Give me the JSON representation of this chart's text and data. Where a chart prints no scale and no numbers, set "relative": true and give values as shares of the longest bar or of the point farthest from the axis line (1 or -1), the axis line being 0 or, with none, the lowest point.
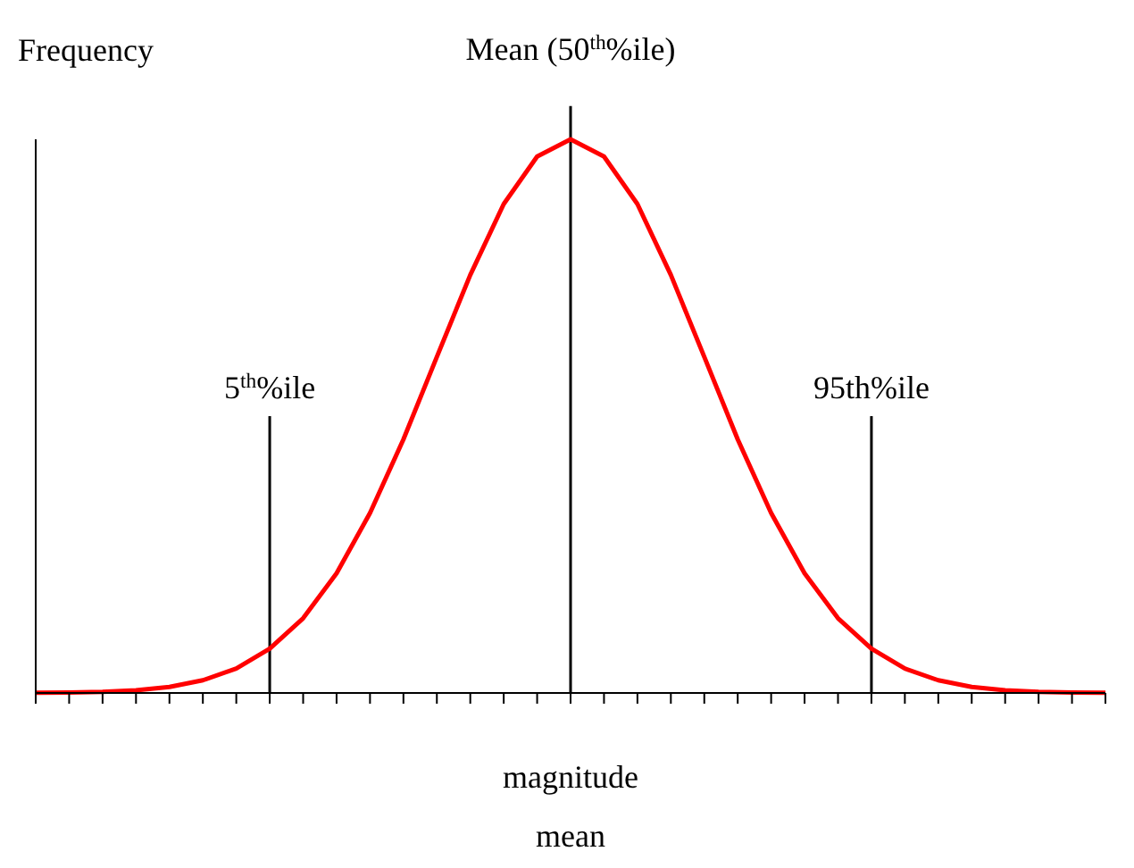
{
  "chart_data": {
    "type": "line",
    "relative": true,
    "xlabel": "magnitude",
    "ylabel": "Frequency",
    "color": "#ff0000",
    "marker": "none",
    "line_style": "solid",
    "categories": [
      null,
      null,
      null,
      null,
      null,
      null,
      null,
      null,
      null,
      null,
      null,
      null,
      null,
      null,
      null,
      null,
      null,
      null,
      null,
      null,
      null,
      null,
      null,
      null,
      null,
      null,
      null,
      null,
      null,
      null,
      null,
      null,
      null
    ],
    "values": [
      0.0003,
      0.0009,
      0.002,
      0.005,
      0.011,
      0.023,
      0.044,
      0.08,
      0.135,
      0.216,
      0.325,
      0.458,
      0.607,
      0.755,
      0.883,
      0.969,
      1,
      0.969,
      0.883,
      0.755,
      0.607,
      0.458,
      0.325,
      0.216,
      0.135,
      0.08,
      0.044,
      0.023,
      0.011,
      0.005,
      0.002,
      0.0009,
      0.0003
    ],
    "annotations": [
      "5$^{th}$%ile",
      "Mean (50$^{th}$%ile)",
      "95th%ile",
      "mean"
    ]
  }
}
